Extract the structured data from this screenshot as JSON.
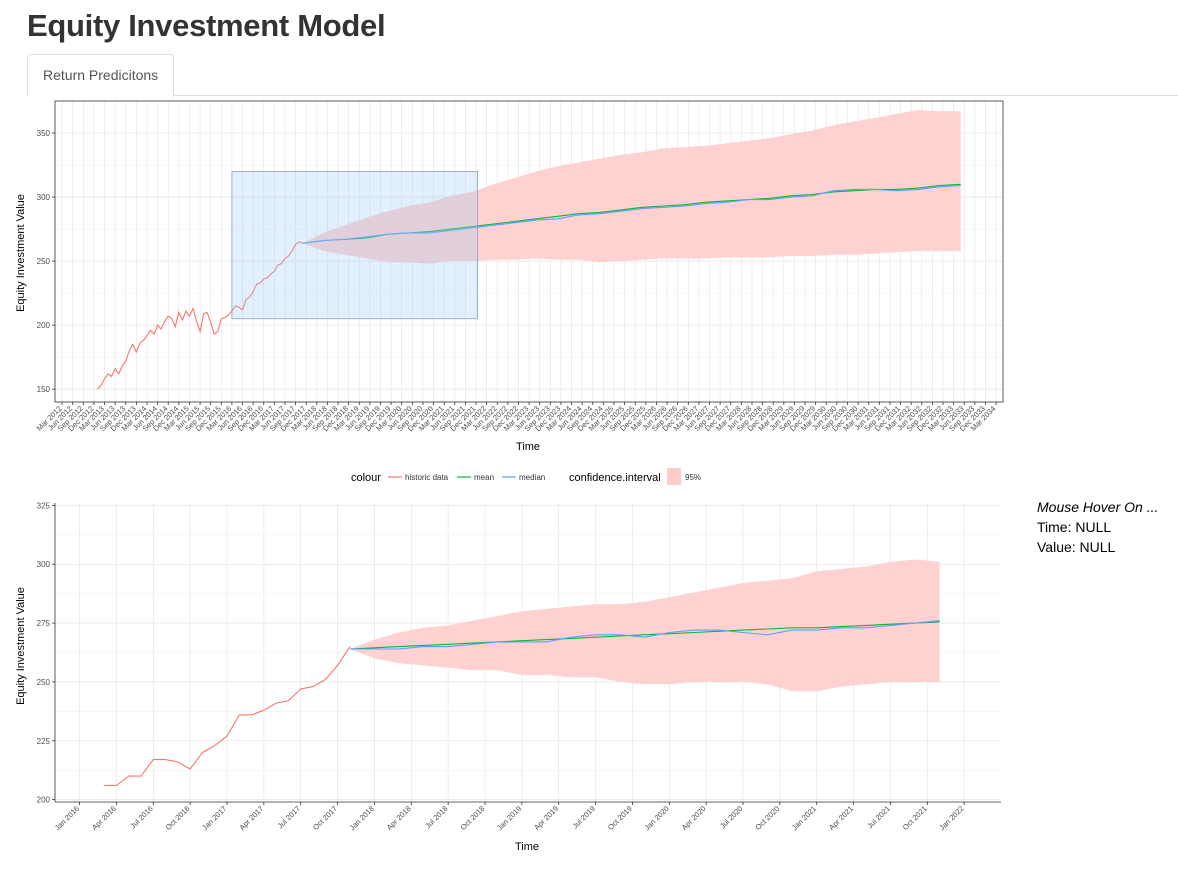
{
  "page": {
    "title": "Equity Investment Model",
    "tabs": [
      {
        "label": "Return Predicitons",
        "active": true
      }
    ]
  },
  "hover_info": {
    "heading": "Mouse Hover On ...",
    "time_label": "Time: NULL",
    "value_label": "Value: NULL"
  },
  "legend": {
    "colour_title": "colour",
    "colour_items": [
      {
        "label": "historic data",
        "color": "#F8766D"
      },
      {
        "label": "mean",
        "color": "#00BA38"
      },
      {
        "label": "median",
        "color": "#619CFF"
      }
    ],
    "ci_title": "confidence.interval",
    "ci_label": "95%",
    "ci_color": "#FFCCCC"
  },
  "chart_data": [
    {
      "type": "line",
      "name": "full-period",
      "xlabel": "Time",
      "ylabel": "Equity Investment Value",
      "xlim": [
        "2012-01-01",
        "2034-04-30"
      ],
      "ylim": [
        140,
        375
      ],
      "yticks": [
        150,
        200,
        250,
        300,
        350
      ],
      "xtick_start": "2012-03",
      "xtick_end": "2034-03",
      "xtick_step_months": 3,
      "grid": true,
      "brush_selection": {
        "x": [
          "2016-03-01",
          "2021-12-15"
        ],
        "y": [
          205,
          320
        ]
      },
      "historic": {
        "x": [
          "2013-01",
          "2013-02",
          "2013-03",
          "2013-04",
          "2013-05",
          "2013-06",
          "2013-07",
          "2013-08",
          "2013-09",
          "2013-10",
          "2013-11",
          "2013-12",
          "2014-01",
          "2014-02",
          "2014-03",
          "2014-04",
          "2014-05",
          "2014-06",
          "2014-07",
          "2014-08",
          "2014-09",
          "2014-10",
          "2014-11",
          "2014-12",
          "2015-01",
          "2015-02",
          "2015-03",
          "2015-04",
          "2015-05",
          "2015-06",
          "2015-07",
          "2015-08",
          "2015-09",
          "2015-10",
          "2015-11",
          "2015-12",
          "2016-01",
          "2016-02",
          "2016-03",
          "2016-04",
          "2016-05",
          "2016-06",
          "2016-07",
          "2016-08",
          "2016-09",
          "2016-10",
          "2016-11",
          "2016-12",
          "2017-01",
          "2017-02",
          "2017-03",
          "2017-04",
          "2017-05",
          "2017-06",
          "2017-07",
          "2017-08",
          "2017-09",
          "2017-10",
          "2017-11"
        ],
        "y": [
          150,
          153,
          158,
          162,
          160,
          166,
          162,
          168,
          172,
          180,
          185,
          179,
          186,
          188,
          192,
          196,
          193,
          200,
          197,
          203,
          207,
          205,
          199,
          210,
          204,
          211,
          207,
          213,
          203,
          195,
          209,
          210,
          202,
          193,
          195,
          205,
          206,
          208,
          211,
          215,
          214,
          212,
          220,
          222,
          226,
          232,
          233,
          236,
          237,
          240,
          242,
          247,
          248,
          252,
          254,
          258,
          263,
          265,
          264
        ]
      },
      "forecast_x": [
        "2017-11",
        "2018-05",
        "2018-11",
        "2019-05",
        "2019-11",
        "2020-05",
        "2020-11",
        "2021-05",
        "2021-11",
        "2022-05",
        "2022-11",
        "2023-05",
        "2023-11",
        "2024-05",
        "2024-11",
        "2025-05",
        "2025-11",
        "2026-05",
        "2026-11",
        "2027-05",
        "2027-11",
        "2028-05",
        "2028-11",
        "2029-05",
        "2029-11",
        "2030-05",
        "2030-11",
        "2031-05",
        "2031-11",
        "2032-05",
        "2032-11",
        "2033-05"
      ],
      "mean": [
        264,
        266,
        267,
        268,
        271,
        272,
        273,
        275,
        277,
        279,
        281,
        283,
        285,
        287,
        288,
        290,
        292,
        293,
        294,
        296,
        297,
        298,
        299,
        301,
        302,
        304,
        305,
        306,
        306,
        307,
        309,
        310
      ],
      "median": [
        264,
        266,
        267,
        269,
        271,
        272,
        272,
        274,
        276,
        278,
        280,
        282,
        283,
        286,
        287,
        289,
        291,
        292,
        293,
        295,
        296,
        298,
        298,
        300,
        301,
        305,
        306,
        306,
        305,
        306,
        308,
        309
      ],
      "ci_lower": [
        264,
        258,
        255,
        252,
        249,
        249,
        248,
        250,
        250,
        251,
        251,
        252,
        251,
        251,
        249,
        250,
        251,
        252,
        252,
        252,
        253,
        253,
        253,
        254,
        254,
        255,
        255,
        256,
        257,
        258,
        258,
        258
      ],
      "ci_upper": [
        264,
        272,
        278,
        284,
        289,
        293,
        296,
        301,
        304,
        310,
        315,
        320,
        324,
        327,
        330,
        333,
        335,
        338,
        339,
        340,
        342,
        344,
        346,
        349,
        352,
        356,
        359,
        362,
        365,
        368,
        367,
        367
      ]
    },
    {
      "type": "line",
      "name": "zoomed-period",
      "xlabel": "Time",
      "ylabel": "Equity Investment Value",
      "xlim": [
        "2015-11-01",
        "2022-04-01"
      ],
      "ylim": [
        199,
        326
      ],
      "yticks": [
        200,
        225,
        250,
        275,
        300,
        325
      ],
      "xticks": [
        "2016-01",
        "2016-04",
        "2016-07",
        "2016-10",
        "2017-01",
        "2017-04",
        "2017-07",
        "2017-10",
        "2018-01",
        "2018-04",
        "2018-07",
        "2018-10",
        "2019-01",
        "2019-04",
        "2019-07",
        "2019-10",
        "2020-01",
        "2020-04",
        "2020-07",
        "2020-10",
        "2021-01",
        "2021-04",
        "2021-07",
        "2021-10",
        "2022-01"
      ],
      "grid": true,
      "historic": {
        "x": [
          "2016-03",
          "2016-04",
          "2016-05",
          "2016-06",
          "2016-07",
          "2016-08",
          "2016-09",
          "2016-10",
          "2016-11",
          "2016-12",
          "2017-01",
          "2017-02",
          "2017-03",
          "2017-04",
          "2017-05",
          "2017-06",
          "2017-07",
          "2017-08",
          "2017-09",
          "2017-10",
          "2017-11"
        ],
        "y": [
          206,
          206,
          210,
          210,
          217,
          217,
          216,
          213,
          220,
          223,
          227,
          236,
          236,
          238,
          241,
          242,
          247,
          248,
          251,
          257,
          265
        ]
      },
      "forecast_x": [
        "2017-11",
        "2018-01",
        "2018-03",
        "2018-05",
        "2018-07",
        "2018-09",
        "2018-11",
        "2019-01",
        "2019-03",
        "2019-05",
        "2019-07",
        "2019-09",
        "2019-11",
        "2020-01",
        "2020-03",
        "2020-05",
        "2020-07",
        "2020-09",
        "2020-11",
        "2021-01",
        "2021-03",
        "2021-05",
        "2021-07",
        "2021-09",
        "2021-11"
      ],
      "mean": [
        264,
        264.5,
        265,
        265.5,
        266,
        266.5,
        267,
        267.5,
        268,
        268.5,
        269,
        269.5,
        270,
        270.5,
        271,
        271.5,
        272,
        272.5,
        273,
        273,
        273.5,
        274,
        274.5,
        275,
        275.5
      ],
      "median": [
        264,
        264,
        264,
        265,
        265,
        266,
        267,
        267,
        267,
        269,
        270,
        270,
        269,
        271,
        272,
        272,
        271,
        270,
        272,
        272,
        273,
        273,
        274,
        275,
        276
      ],
      "ci_lower": [
        264,
        260,
        258,
        257,
        256,
        255,
        255,
        253,
        253,
        252,
        252,
        250,
        249,
        249,
        250,
        250,
        250,
        249,
        246,
        246,
        248,
        249,
        250,
        250,
        250
      ],
      "ci_upper": [
        264,
        268,
        271,
        273,
        274,
        276,
        278,
        280,
        281,
        282,
        283,
        283,
        284,
        286,
        288,
        290,
        292,
        293,
        294,
        297,
        298,
        299,
        301,
        302,
        301
      ]
    }
  ]
}
